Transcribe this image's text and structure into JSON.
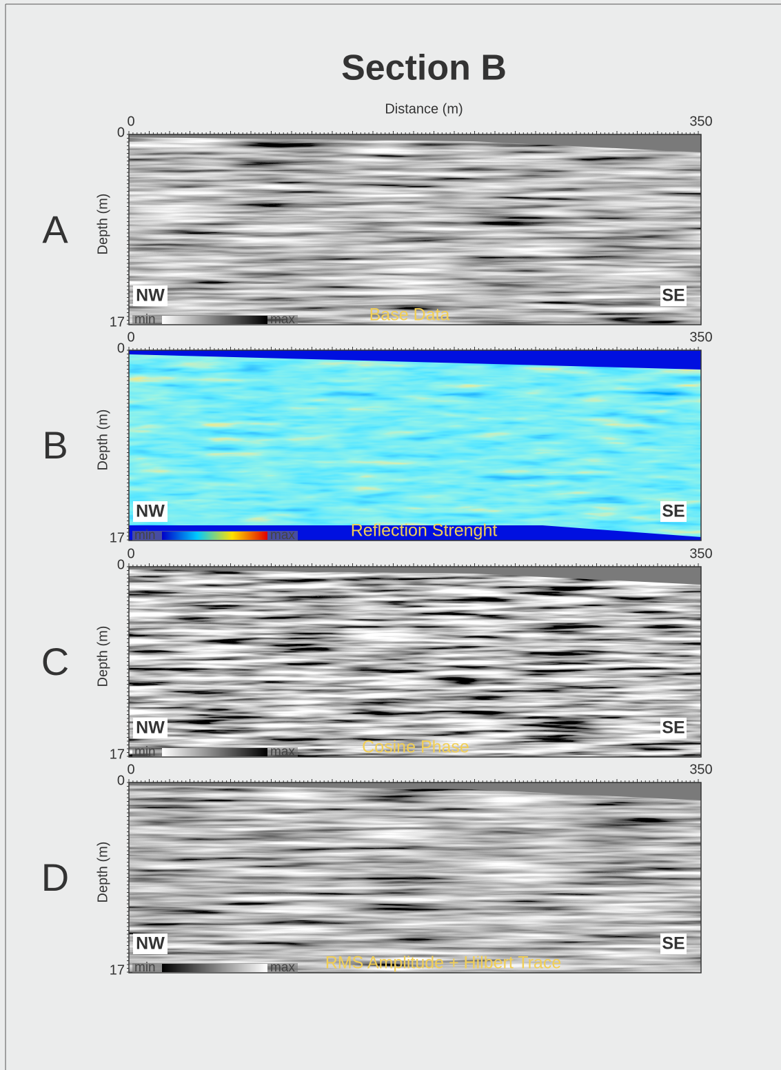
{
  "title": "Section B",
  "x_axis_label": "Distance (m)",
  "panels": [
    {
      "letter": "A",
      "caption": "Base Data",
      "y_axis_label": "Depth (m)",
      "x_ticks": [
        0,
        350
      ],
      "y_ticks": [
        0,
        17
      ],
      "left_label": "NW",
      "right_label": "SE",
      "scale_min": "min",
      "scale_max": "max",
      "scale_colors": [
        "#ffffff",
        "#000000"
      ]
    },
    {
      "letter": "B",
      "caption": "Reflection Strenght",
      "y_axis_label": "Depth (m)",
      "x_ticks": [
        0,
        350
      ],
      "y_ticks": [
        0,
        17
      ],
      "left_label": "NW",
      "right_label": "SE",
      "scale_min": "min",
      "scale_max": "max",
      "scale_colors": [
        "#0000c8",
        "#00c8ff",
        "#ffe000",
        "#e00000"
      ]
    },
    {
      "letter": "C",
      "caption": "Cosine Phase",
      "y_axis_label": "Depth (m)",
      "x_ticks": [
        0,
        350
      ],
      "y_ticks": [
        0,
        17
      ],
      "left_label": "NW",
      "right_label": "SE",
      "scale_min": "min",
      "scale_max": "max",
      "scale_colors": [
        "#ffffff",
        "#000000"
      ]
    },
    {
      "letter": "D",
      "caption": "RMS Amplitude + Hilbert Trace",
      "y_axis_label": "Depth (m)",
      "x_ticks": [
        0,
        350
      ],
      "y_ticks": [
        0,
        17
      ],
      "left_label": "NW",
      "right_label": "SE",
      "scale_min": "min",
      "scale_max": "max",
      "scale_colors": [
        "#000000",
        "#ffffff"
      ]
    }
  ]
}
